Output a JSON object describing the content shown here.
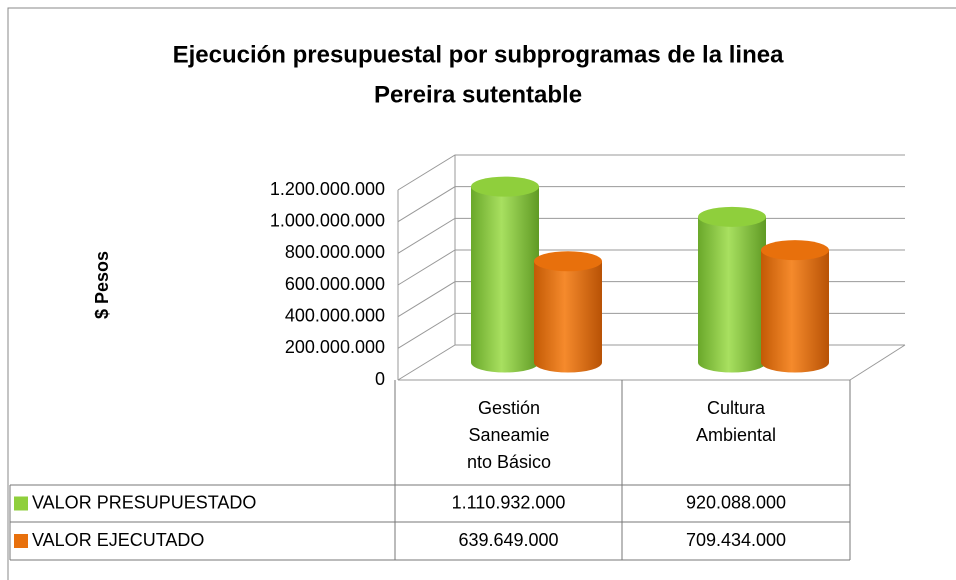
{
  "chart_data": {
    "type": "bar3d",
    "title": "Ejecución presupuestal por subprogramas de la linea Pereira sutentable",
    "title_lines": [
      "Ejecución presupuestal por subprogramas de la linea",
      "Pereira sutentable"
    ],
    "ylabel": "$ Pesos",
    "categories": [
      "Gestión Saneamiento Básico",
      "Cultura Ambiental"
    ],
    "series": [
      {
        "name": "VALOR PRESUPUESTADO",
        "color": "#8fcf3c",
        "values": [
          1110932000,
          920088000
        ],
        "value_labels": [
          "1.110.932.000",
          "920.088.000"
        ]
      },
      {
        "name": "VALOR EJECUTADO",
        "color": "#e8700c",
        "values": [
          639649000,
          709434000
        ],
        "value_labels": [
          "639.649.000",
          "709.434.000"
        ]
      }
    ],
    "ylim": [
      0,
      1200000000
    ],
    "yticks": [
      0,
      {
        "value": 200000000,
        "label": "200.000.000"
      },
      {
        "value": 400000000,
        "label": "400.000.000"
      },
      {
        "value": 600000000,
        "label": "600.000.000"
      },
      {
        "value": 800000000,
        "label": "800.000.000"
      },
      {
        "value": 1000000000,
        "label": "1.000.000.000"
      },
      {
        "value": 1200000000,
        "label": "1.200.000.000"
      }
    ],
    "grid": true
  }
}
